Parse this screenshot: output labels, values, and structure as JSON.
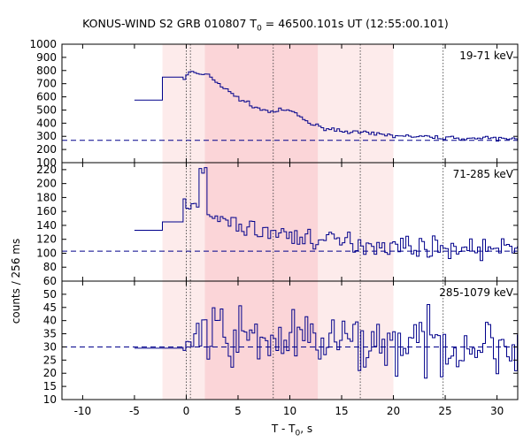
{
  "chart_data": {
    "type": "line",
    "title": {
      "prefix": "KONUS-WIND S2 GRB 010807 T",
      "sub": "0",
      "suffix": " = 46500.101s UT (12:55:00.101)"
    },
    "xlabel": {
      "prefix": "T - T",
      "sub": "0",
      "suffix": ", s"
    },
    "ylabel": "counts / 256 ms",
    "xlim": [
      -12,
      32
    ],
    "x_ticks": [
      -10,
      -5,
      0,
      5,
      10,
      15,
      20,
      25,
      30
    ],
    "x_tick_labels": [
      "-10",
      "-5",
      "0",
      "5",
      "10",
      "15",
      "20",
      "25",
      "30"
    ],
    "shaded_intervals": [
      {
        "x0": -2.3,
        "x1": 20.0,
        "color": "#fdebeb"
      },
      {
        "x0": 1.8,
        "x1": 12.7,
        "color": "#fbd5d8"
      }
    ],
    "vertical_markers": [
      0.0,
      0.4,
      8.4,
      16.8,
      24.8
    ],
    "series_color": "#00008b",
    "panels": [
      {
        "label": "19-71 keV",
        "ylim": [
          100,
          1000
        ],
        "y_ticks": [
          100,
          200,
          300,
          400,
          500,
          600,
          700,
          800,
          900,
          1000
        ],
        "y_tick_labels": [
          "100",
          "200",
          "300",
          "400",
          "500",
          "600",
          "700",
          "800",
          "900",
          "1000"
        ],
        "background": 270,
        "segments": [
          [
            -5.0,
            575
          ],
          [
            -2.3,
            750
          ],
          [
            -0.3,
            750
          ]
        ]
      },
      {
        "label": "71-285 keV",
        "ylim": [
          60,
          230
        ],
        "y_ticks": [
          60,
          80,
          100,
          120,
          140,
          160,
          180,
          200,
          220
        ],
        "y_tick_labels": [
          "60",
          "80",
          "100",
          "120",
          "140",
          "160",
          "180",
          "200",
          "220"
        ],
        "background": 103,
        "segments": [
          [
            -5.0,
            133
          ],
          [
            -2.3,
            145
          ],
          [
            -0.3,
            145
          ]
        ]
      },
      {
        "label": "285-1079 keV",
        "ylim": [
          10,
          55
        ],
        "y_ticks": [
          10,
          15,
          20,
          25,
          30,
          35,
          40,
          45,
          50
        ],
        "y_tick_labels": [
          "10",
          "15",
          "20",
          "25",
          "30",
          "35",
          "40",
          "45",
          "50"
        ],
        "background": 30,
        "segments": [
          [
            -5.0,
            29.5
          ],
          [
            -2.3,
            29.5
          ],
          [
            -0.3,
            30
          ]
        ]
      }
    ]
  }
}
